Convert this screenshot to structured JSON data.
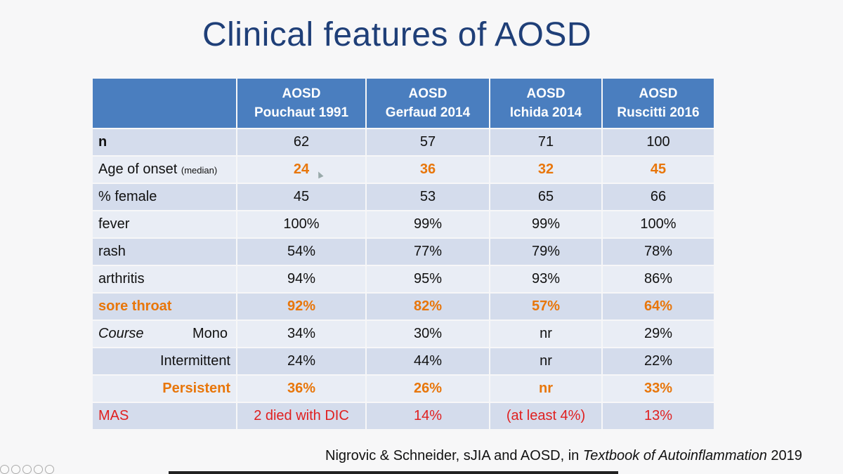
{
  "title": "Clinical features of AOSD",
  "table": {
    "headers": [
      {
        "line1": "",
        "line2": ""
      },
      {
        "line1": "AOSD",
        "line2": "Pouchaut 1991"
      },
      {
        "line1": "AOSD",
        "line2": "Gerfaud 2014"
      },
      {
        "line1": "AOSD",
        "line2": "Ichida 2014"
      },
      {
        "line1": "AOSD",
        "line2": "Ruscitti 2016"
      }
    ],
    "rows": {
      "n": {
        "label": "n",
        "values": [
          "62",
          "57",
          "71",
          "100"
        ]
      },
      "age": {
        "label": "Age of onset",
        "label_small": "(median)",
        "values": [
          "24",
          "36",
          "32",
          "45"
        ]
      },
      "female": {
        "label": "% female",
        "values": [
          "45",
          "53",
          "65",
          "66"
        ]
      },
      "fever": {
        "label": "fever",
        "values": [
          "100%",
          "99%",
          "99%",
          "100%"
        ]
      },
      "rash": {
        "label": "rash",
        "values": [
          "54%",
          "77%",
          "79%",
          "78%"
        ]
      },
      "arthritis": {
        "label": "arthritis",
        "values": [
          "94%",
          "95%",
          "93%",
          "86%"
        ]
      },
      "sore": {
        "label": "sore throat",
        "values": [
          "92%",
          "82%",
          "57%",
          "64%"
        ]
      },
      "mono": {
        "label": "Course",
        "sublabel": "Mono",
        "values": [
          "34%",
          "30%",
          "nr",
          "29%"
        ]
      },
      "intermittent": {
        "label": "Intermittent",
        "values": [
          "24%",
          "44%",
          "nr",
          "22%"
        ]
      },
      "persistent": {
        "label": "Persistent",
        "values": [
          "36%",
          "26%",
          "nr",
          "33%"
        ]
      },
      "mas": {
        "label": "MAS",
        "values": [
          "2 died with DIC",
          "14%",
          "(at least 4%)",
          "13%"
        ]
      }
    }
  },
  "citation": {
    "prefix": "Nigrovic & Schneider, sJIA and AOSD, in ",
    "book": "Textbook of Autoinflammation",
    "year": " 2019"
  },
  "colors": {
    "header_bg": "#4a7ebf",
    "row_dark": "#d4dcec",
    "row_light": "#e9edf5",
    "highlight_orange": "#e8760a",
    "highlight_red": "#e02020",
    "title_color": "#1f3f78"
  }
}
